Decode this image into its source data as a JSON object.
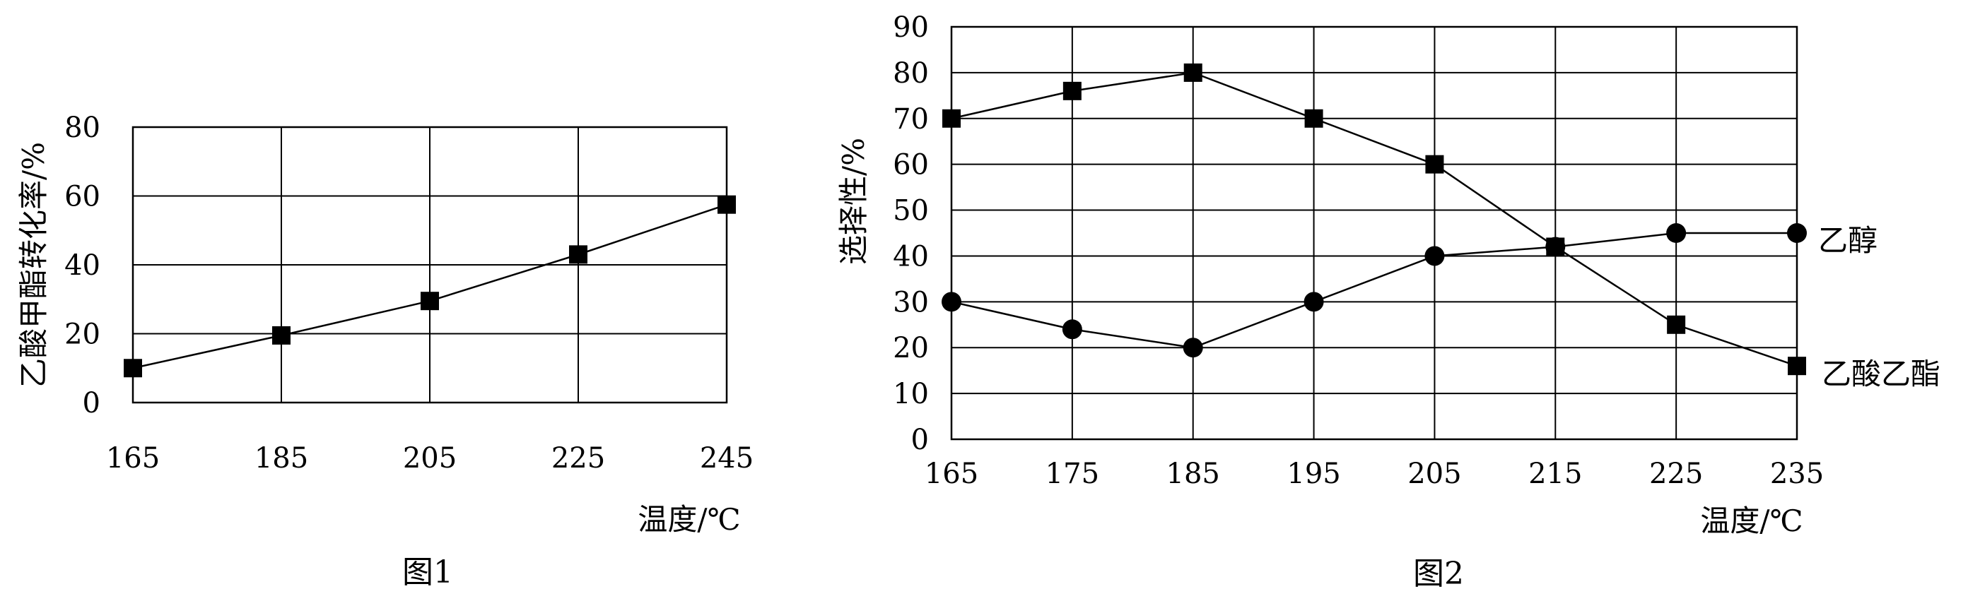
{
  "chart_data": [
    {
      "type": "line",
      "caption": "图1",
      "xlabel": "温度/℃",
      "ylabel": "乙酸甲酯转化率/%",
      "x": [
        165,
        185,
        205,
        225,
        245
      ],
      "xticks": [
        "165",
        "185",
        "205",
        "225",
        "245"
      ],
      "yticks": [
        "0",
        "20",
        "40",
        "60",
        "80"
      ],
      "xlim": [
        165,
        245
      ],
      "ylim": [
        0,
        80
      ],
      "grid": true,
      "series": [
        {
          "marker": "square",
          "values": [
            10,
            19.5,
            29.5,
            43,
            57.5
          ]
        }
      ]
    },
    {
      "type": "line",
      "caption": "图2",
      "xlabel": "温度/℃",
      "ylabel": "选择性/%",
      "x": [
        165,
        175,
        185,
        195,
        205,
        215,
        225,
        235
      ],
      "xticks": [
        "165",
        "175",
        "185",
        "195",
        "205",
        "215",
        "225",
        "235"
      ],
      "yticks": [
        "0",
        "10",
        "20",
        "30",
        "40",
        "50",
        "60",
        "70",
        "80",
        "90"
      ],
      "xlim": [
        165,
        235
      ],
      "ylim": [
        0,
        90
      ],
      "grid": true,
      "series": [
        {
          "name": "乙酸乙酯",
          "marker": "square",
          "values": [
            70,
            76,
            80,
            70,
            60,
            42,
            25,
            16
          ]
        },
        {
          "name": "乙醇",
          "marker": "circle",
          "values": [
            30,
            24,
            20,
            30,
            40,
            42,
            45,
            45
          ]
        }
      ]
    }
  ]
}
